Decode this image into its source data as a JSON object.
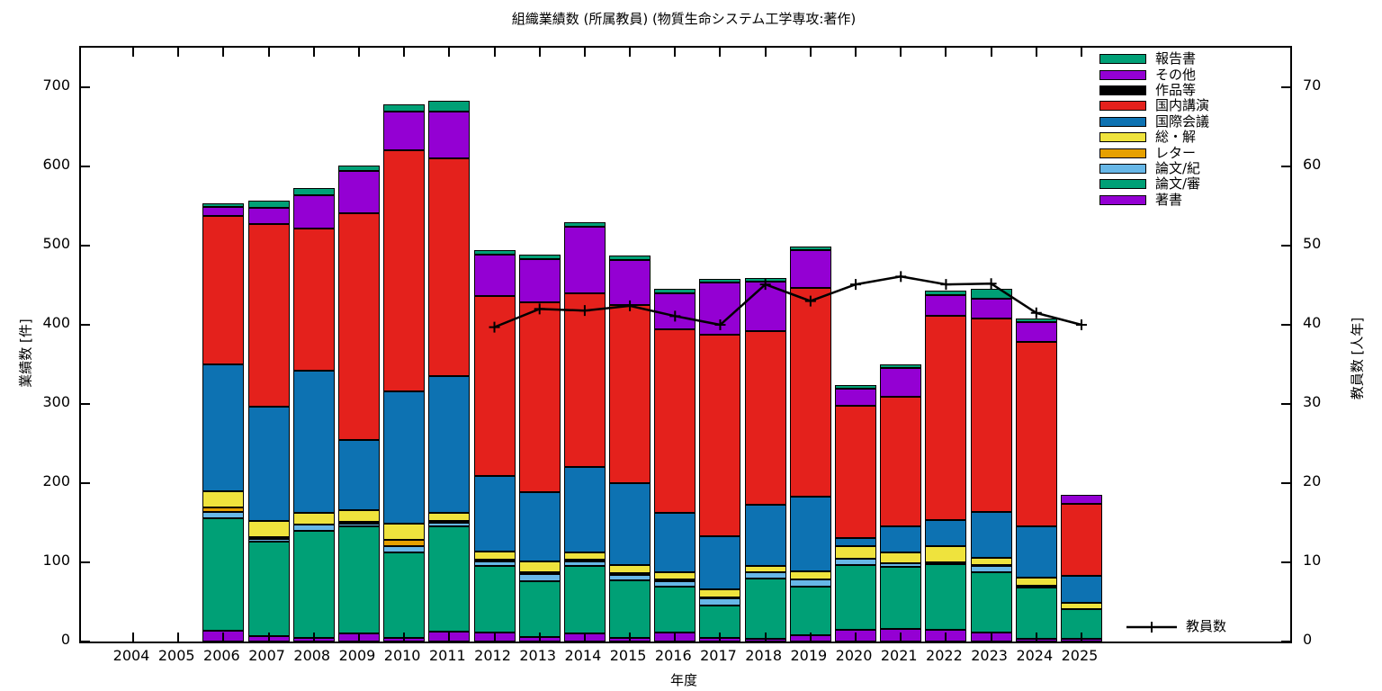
{
  "title": "組織業績数 (所属教員) (物質生命システム工学専攻:著作)",
  "axes": {
    "x": {
      "label": "年度",
      "years": [
        "2004",
        "2005",
        "2006",
        "2007",
        "2008",
        "2009",
        "2010",
        "2011",
        "2012",
        "2013",
        "2014",
        "2015",
        "2016",
        "2017",
        "2018",
        "2019",
        "2020",
        "2021",
        "2022",
        "2023",
        "2024",
        "2025"
      ]
    },
    "y_left": {
      "label": "業績数 [件]",
      "ticks": [
        0,
        100,
        200,
        300,
        400,
        500,
        600,
        700
      ],
      "max": 750
    },
    "y_right": {
      "label": "教員数 [人年]",
      "ticks": [
        0,
        10,
        20,
        30,
        40,
        50,
        60,
        70
      ],
      "max": 75
    }
  },
  "legend": [
    {
      "label": "報告書",
      "color": "#00a076"
    },
    {
      "label": "その他",
      "color": "#9400d3"
    },
    {
      "label": "作品等",
      "color": "#000000"
    },
    {
      "label": "国内講演",
      "color": "#e4211c"
    },
    {
      "label": "国際会議",
      "color": "#0d72b2"
    },
    {
      "label": "総・解",
      "color": "#efe33d"
    },
    {
      "label": "レター",
      "color": "#e6a000"
    },
    {
      "label": "論文/紀",
      "color": "#67b7e7"
    },
    {
      "label": "論文/審",
      "color": "#00a076"
    },
    {
      "label": "著書",
      "color": "#9400d3"
    }
  ],
  "line_key": {
    "label": "教員数",
    "color": "#000000"
  },
  "chart_data": {
    "type": "bar",
    "stacked": true,
    "title": "組織業績数 (所属教員) (物質生命システム工学専攻:著作)",
    "xlabel": "年度",
    "ylabel_left": "業績数 [件]",
    "ylabel_right": "教員数 [人年]",
    "ylim_left": [
      0,
      750
    ],
    "ylim_right": [
      0,
      75
    ],
    "grid": false,
    "legend_position": "top-right-inside",
    "categories": [
      "2006",
      "2007",
      "2008",
      "2009",
      "2010",
      "2011",
      "2012",
      "2013",
      "2014",
      "2015",
      "2016",
      "2017",
      "2018",
      "2019",
      "2020",
      "2021",
      "2022",
      "2023",
      "2024",
      "2025"
    ],
    "series": [
      {
        "name": "著書",
        "color": "#9400d3",
        "values": [
          14,
          7,
          5,
          10,
          5,
          12,
          11,
          6,
          10,
          5,
          11,
          4,
          3,
          8,
          15,
          16,
          15,
          11,
          3,
          3
        ]
      },
      {
        "name": "論文/審",
        "color": "#00a076",
        "values": [
          142,
          119,
          135,
          135,
          107,
          134,
          84,
          70,
          85,
          72,
          58,
          42,
          76,
          61,
          82,
          78,
          83,
          76,
          65,
          38
        ]
      },
      {
        "name": "論文/紀",
        "color": "#67b7e7",
        "values": [
          8,
          3,
          8,
          4,
          9,
          4,
          6,
          9,
          6,
          7,
          7,
          8,
          8,
          9,
          7,
          5,
          2,
          8,
          3,
          0
        ]
      },
      {
        "name": "レター",
        "color": "#e6a000",
        "values": [
          5,
          3,
          0,
          2,
          7,
          2,
          2,
          2,
          2,
          2,
          2,
          2,
          0,
          0,
          0,
          0,
          0,
          2,
          0,
          0
        ]
      },
      {
        "name": "総・解",
        "color": "#efe33d",
        "values": [
          21,
          20,
          14,
          15,
          21,
          11,
          11,
          14,
          9,
          11,
          9,
          10,
          8,
          11,
          16,
          14,
          20,
          9,
          10,
          8
        ]
      },
      {
        "name": "国際会議",
        "color": "#0d72b2",
        "values": [
          160,
          145,
          180,
          88,
          167,
          172,
          95,
          88,
          108,
          103,
          75,
          67,
          78,
          94,
          11,
          33,
          33,
          58,
          65,
          34
        ]
      },
      {
        "name": "国内講演",
        "color": "#e4211c",
        "values": [
          188,
          230,
          180,
          287,
          305,
          275,
          227,
          239,
          220,
          225,
          232,
          254,
          219,
          264,
          167,
          163,
          258,
          244,
          232,
          91
        ]
      },
      {
        "name": "作品等",
        "color": "#000000",
        "values": [
          0,
          0,
          0,
          0,
          0,
          0,
          0,
          0,
          0,
          0,
          0,
          0,
          0,
          0,
          0,
          0,
          0,
          0,
          0,
          0
        ]
      },
      {
        "name": "その他",
        "color": "#9400d3",
        "values": [
          11,
          21,
          42,
          53,
          48,
          59,
          53,
          55,
          84,
          57,
          46,
          66,
          62,
          47,
          21,
          36,
          27,
          25,
          25,
          11
        ]
      },
      {
        "name": "報告書",
        "color": "#00a076",
        "values": [
          4,
          9,
          9,
          7,
          9,
          14,
          5,
          6,
          6,
          5,
          5,
          5,
          5,
          5,
          5,
          5,
          5,
          12,
          5,
          0
        ]
      }
    ],
    "totals": [
      553,
      557,
      573,
      601,
      678,
      683,
      494,
      489,
      530,
      487,
      445,
      458,
      459,
      499,
      324,
      350,
      443,
      445,
      408,
      185
    ],
    "line": {
      "name": "教員数",
      "axis": "right",
      "color": "#000000",
      "marker": "plus",
      "categories": [
        "2012",
        "2013",
        "2014",
        "2015",
        "2016",
        "2017",
        "2018",
        "2019",
        "2020",
        "2021",
        "2022",
        "2023",
        "2024",
        "2025"
      ],
      "values": [
        39.7,
        42.0,
        41.8,
        42.4,
        41.1,
        40.0,
        45.1,
        43.0,
        45.1,
        46.1,
        45.1,
        45.2,
        41.5,
        40.0
      ]
    }
  }
}
